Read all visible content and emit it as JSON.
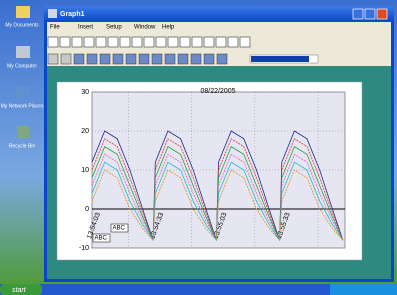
{
  "desktop": {
    "icons": [
      "My Documents",
      "My Computer",
      "My Network Places",
      "Recycle Bin"
    ],
    "start": "start"
  },
  "window": {
    "title": "Graph1",
    "menu": [
      "File",
      "Insert",
      "Setup",
      "Window",
      "Help"
    ]
  },
  "chart_data": {
    "type": "line",
    "title": "08/22/2005",
    "x": [
      0,
      6,
      12,
      18,
      24,
      29,
      30,
      36,
      42,
      48,
      54,
      59,
      60,
      66,
      72,
      78,
      84,
      89,
      90,
      96,
      102,
      108,
      114,
      119
    ],
    "xlim": [
      0,
      120
    ],
    "xticks": [
      {
        "value": 3,
        "label": "13:54:03"
      },
      {
        "value": 33,
        "label": "13:54:33"
      },
      {
        "value": 63,
        "label": "13:55:03"
      },
      {
        "value": 93,
        "label": "13:55:33"
      }
    ],
    "ylim": [
      -10,
      30
    ],
    "yticks": [
      -10,
      0,
      10,
      20,
      30
    ],
    "grid": true,
    "annotations": [
      "ABC",
      "ABC"
    ],
    "series": [
      {
        "color": "#1a2a8a",
        "values": [
          12,
          20,
          18,
          10,
          0,
          -8,
          12,
          20,
          18,
          10,
          0,
          -8,
          12,
          20,
          18,
          10,
          0,
          -8,
          12,
          20,
          18,
          10,
          0,
          -8
        ]
      },
      {
        "color": "#e03030",
        "values": [
          10,
          18,
          16,
          8,
          -1,
          -8,
          10,
          18,
          16,
          8,
          -1,
          -8,
          10,
          18,
          16,
          8,
          -1,
          -8,
          10,
          18,
          16,
          8,
          -1,
          -8
        ]
      },
      {
        "color": "#2aa040",
        "values": [
          8,
          16,
          14,
          6,
          -2,
          -8,
          8,
          16,
          14,
          6,
          -2,
          -8,
          8,
          16,
          14,
          6,
          -2,
          -8,
          8,
          16,
          14,
          6,
          -2,
          -8
        ]
      },
      {
        "color": "#e060c0",
        "values": [
          6,
          14,
          12,
          4,
          -3,
          -8,
          6,
          14,
          12,
          4,
          -3,
          -8,
          6,
          14,
          12,
          4,
          -3,
          -8,
          6,
          14,
          12,
          4,
          -3,
          -8
        ]
      },
      {
        "color": "#20b8c8",
        "values": [
          4,
          12,
          10,
          2,
          -4,
          -8,
          4,
          12,
          10,
          2,
          -4,
          -8,
          4,
          12,
          10,
          2,
          -4,
          -8,
          4,
          12,
          10,
          2,
          -4,
          -8
        ]
      },
      {
        "color": "#e09020",
        "values": [
          2,
          10,
          8,
          0,
          -5,
          -8,
          2,
          10,
          8,
          0,
          -5,
          -8,
          2,
          10,
          8,
          0,
          -5,
          -8,
          2,
          10,
          8,
          0,
          -5,
          -8
        ]
      }
    ]
  }
}
